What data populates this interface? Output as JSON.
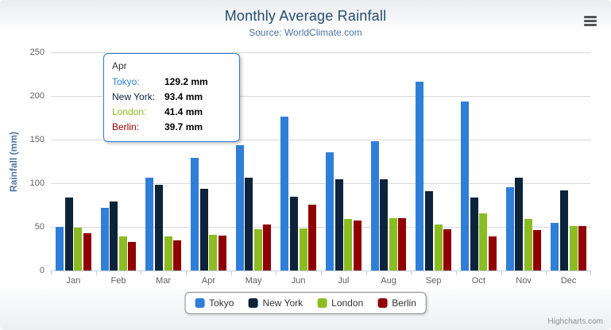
{
  "chart": {
    "title": "Monthly Average Rainfall",
    "subtitle": "Source: WorldClimate.com",
    "y_axis_title": "Rainfall (mm)",
    "credits": "Highcharts.com"
  },
  "chart_data": {
    "type": "bar",
    "title": "Monthly Average Rainfall",
    "subtitle": "Source: WorldClimate.com",
    "xlabel": "",
    "ylabel": "Rainfall (mm)",
    "ylim": [
      0,
      250
    ],
    "ytick_interval": 50,
    "grid": true,
    "legend_position": "bottom",
    "categories": [
      "Jan",
      "Feb",
      "Mar",
      "Apr",
      "May",
      "Jun",
      "Jul",
      "Aug",
      "Sep",
      "Oct",
      "Nov",
      "Dec"
    ],
    "series": [
      {
        "name": "Tokyo",
        "color": "#2f7ed8",
        "values": [
          49.9,
          71.5,
          106.4,
          129.2,
          144.0,
          176.0,
          135.6,
          148.5,
          216.4,
          194.1,
          95.6,
          54.4
        ]
      },
      {
        "name": "New York",
        "color": "#0d233a",
        "values": [
          83.6,
          78.8,
          98.5,
          93.4,
          106.0,
          84.5,
          105.0,
          104.3,
          91.2,
          83.5,
          106.6,
          92.3
        ]
      },
      {
        "name": "London",
        "color": "#8bbc21",
        "values": [
          48.9,
          38.8,
          39.3,
          41.4,
          47.0,
          48.3,
          59.0,
          59.6,
          52.4,
          65.2,
          59.3,
          51.2
        ]
      },
      {
        "name": "Berlin",
        "color": "#910000",
        "values": [
          42.4,
          33.2,
          34.5,
          39.7,
          52.6,
          75.5,
          57.4,
          60.4,
          47.6,
          39.1,
          46.8,
          51.1
        ]
      }
    ]
  },
  "tooltip": {
    "category": "Apr",
    "border_color": "#2f7ed8",
    "rows": [
      {
        "name": "Tokyo",
        "value": "129.2 mm",
        "color": "#2f7ed8"
      },
      {
        "name": "New York",
        "value": "93.4 mm",
        "color": "#0d233a"
      },
      {
        "name": "London",
        "value": "41.4 mm",
        "color": "#8bbc21"
      },
      {
        "name": "Berlin",
        "value": "39.7 mm",
        "color": "#910000"
      }
    ]
  }
}
